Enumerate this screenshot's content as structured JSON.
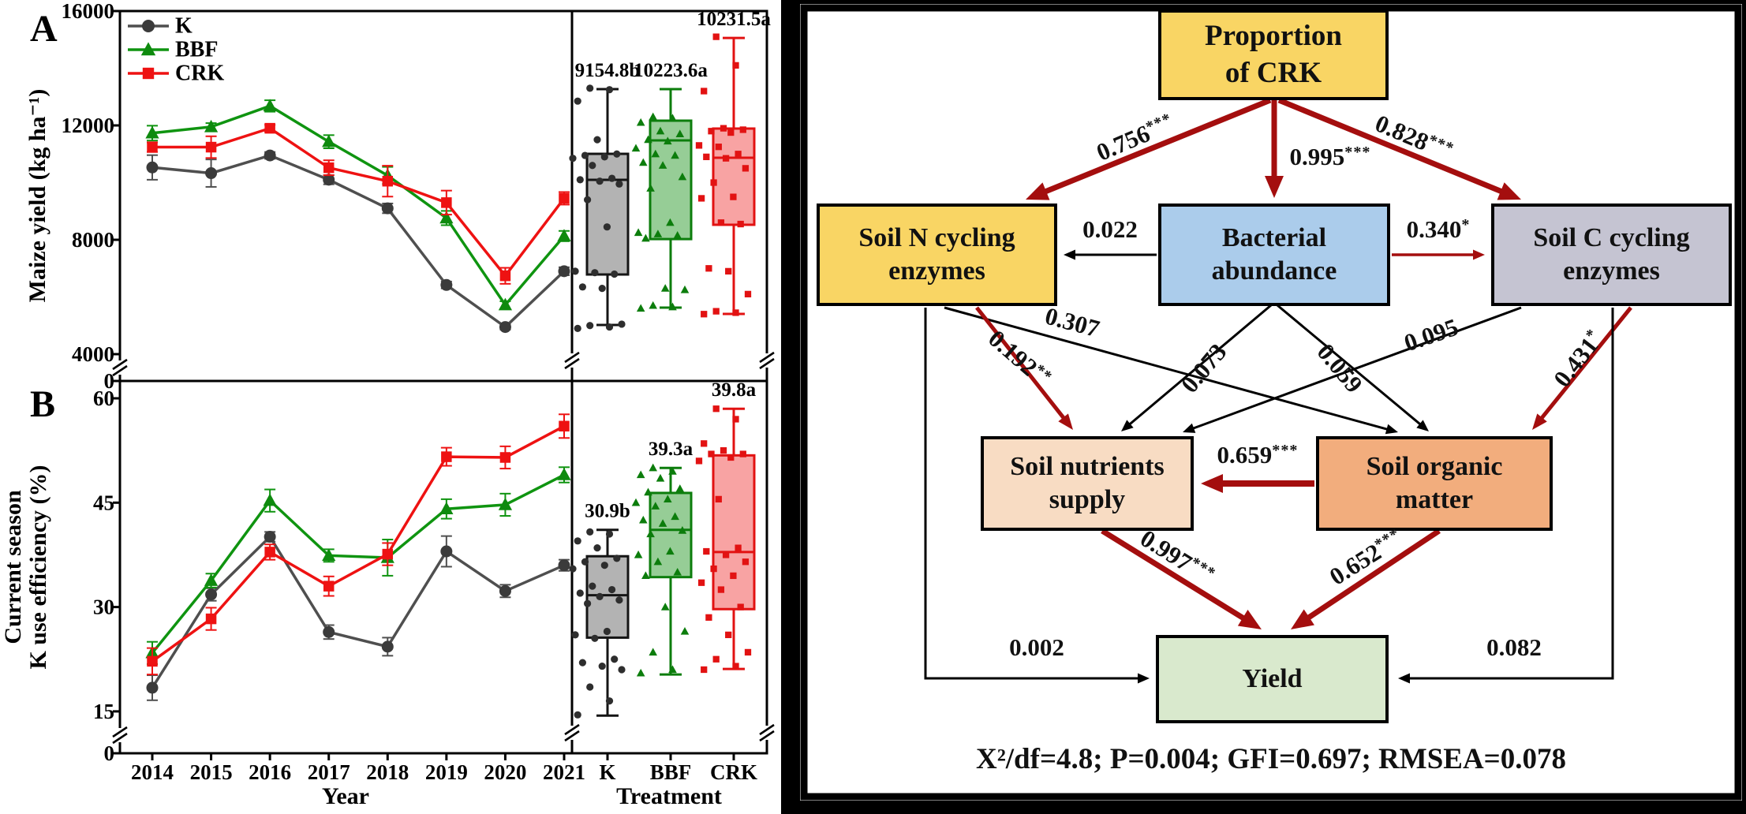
{
  "figure": {
    "panel_a": {
      "letter": "A",
      "ylabel": "Maize yield (kg ha⁻¹)",
      "yticks": [
        16000,
        12000,
        8000,
        4000
      ],
      "zero_label": "0",
      "legend": [
        "K",
        "BBF",
        "CRK"
      ]
    },
    "panel_b": {
      "letter": "B",
      "ylabel_line1": "Current season",
      "ylabel_line2": "K use efficiency (%)",
      "yticks": [
        60,
        45,
        30,
        15
      ],
      "zero_label": "0"
    },
    "xlabel_years": "Year",
    "xlabel_treatment": "Treatment"
  },
  "colors": {
    "series": {
      "K": {
        "line": "#4f4f4f",
        "fill": "#3b3b3b"
      },
      "BBF": {
        "line": "#0f9410",
        "fill": "#0e8a0e"
      },
      "CRK": {
        "line": "#ee1212",
        "fill": "#ee1212"
      }
    },
    "box": {
      "K": {
        "stroke": "#141414",
        "fill": "#b3b3b3",
        "pt": "#2e2e2e"
      },
      "BBF": {
        "stroke": "#0c7d0c",
        "fill": "#96cd96",
        "pt": "#0c7d0c"
      },
      "CRK": {
        "stroke": "#e21212",
        "fill": "#f8a3a3",
        "pt": "#e21212"
      }
    },
    "sem_arrow_red": "#a40e0e",
    "sem_arrow_black": "#000000",
    "node_fills": {
      "crk": "#f9d564",
      "n_enz": "#f9d564",
      "bact": "#abcceb",
      "c_enz": "#c5c4d2",
      "nutr": "#f8dcc3",
      "som": "#f2ad7d",
      "yield": "#d9e9cd"
    }
  },
  "chart_data": [
    {
      "type": "line",
      "panel": "A",
      "ylabel": "Maize yield (kg ha⁻¹)",
      "x": [
        2014,
        2015,
        2016,
        2017,
        2018,
        2019,
        2020,
        2021
      ],
      "ylim": [
        4000,
        16000
      ],
      "axis_break": true,
      "grid": false,
      "legend_position": "upper-left",
      "series": [
        {
          "name": "K",
          "marker": "circle",
          "values": [
            10530,
            10330,
            10950,
            10100,
            9100,
            6420,
            4950,
            6900
          ],
          "err": [
            430,
            480,
            120,
            160,
            170,
            120,
            90,
            140
          ]
        },
        {
          "name": "BBF",
          "marker": "triangle",
          "values": [
            11730,
            11950,
            12680,
            11430,
            10250,
            8760,
            5720,
            8130
          ],
          "err": [
            260,
            130,
            200,
            230,
            300,
            250,
            130,
            180
          ]
        },
        {
          "name": "CRK",
          "marker": "square",
          "values": [
            11240,
            11240,
            11900,
            10520,
            10050,
            9300,
            6740,
            9450
          ],
          "err": [
            170,
            380,
            120,
            260,
            540,
            420,
            280,
            220
          ]
        }
      ]
    },
    {
      "type": "box",
      "panel": "A",
      "categories": [
        "K",
        "BBF",
        "CRK"
      ],
      "mean_labels": [
        "9154.8b",
        "10223.6a",
        "10231.5a"
      ],
      "boxes": [
        {
          "name": "K",
          "whisker_low": 5020,
          "q1": 6786,
          "median": 10096,
          "q3": 11006,
          "whisker_high": 13270,
          "points": [
            13300,
            13250,
            12850,
            11500,
            11000,
            10950,
            10900,
            10850,
            10600,
            10150,
            10100,
            10050,
            9950,
            9400,
            8450,
            6900,
            6850,
            6800,
            6350,
            6300,
            5050,
            5000,
            4950,
            4900
          ]
        },
        {
          "name": "BBF",
          "whisker_low": 5628,
          "q1": 8025,
          "median": 11475,
          "q3": 12166,
          "whisker_high": 13270,
          "points": [
            12300,
            12250,
            12100,
            11800,
            11700,
            11500,
            11450,
            11200,
            11000,
            10950,
            10700,
            10600,
            10200,
            9800,
            8600,
            8250,
            8200,
            8150,
            8050,
            6300,
            6250,
            5700,
            5650,
            5600
          ]
        },
        {
          "name": "CRK",
          "whisker_low": 5407,
          "q1": 8525,
          "median": 10870,
          "q3": 11890,
          "whisker_high": 15060,
          "points": [
            15100,
            14100,
            13200,
            11900,
            11850,
            11800,
            11750,
            11300,
            11250,
            11000,
            10900,
            10850,
            10500,
            10000,
            9500,
            9450,
            8600,
            8550,
            7000,
            6900,
            6100,
            5500,
            5450,
            5400
          ]
        }
      ]
    },
    {
      "type": "line",
      "panel": "B",
      "ylabel": "Current season K use efficiency (%)",
      "x": [
        2014,
        2015,
        2016,
        2017,
        2018,
        2019,
        2020,
        2021
      ],
      "ylim": [
        15,
        60
      ],
      "axis_break": true,
      "grid": false,
      "series": [
        {
          "name": "K",
          "marker": "circle",
          "values": [
            18.4,
            31.8,
            40.1,
            26.4,
            24.3,
            38.0,
            32.3,
            36.0
          ],
          "err": [
            1.8,
            0.9,
            0.7,
            1.0,
            1.3,
            2.2,
            0.9,
            0.8
          ]
        },
        {
          "name": "BBF",
          "marker": "triangle",
          "values": [
            23.4,
            33.8,
            45.3,
            37.4,
            37.1,
            44.1,
            44.7,
            49.0
          ],
          "err": [
            1.6,
            1.0,
            1.6,
            0.9,
            2.6,
            1.4,
            1.6,
            1.1
          ]
        },
        {
          "name": "CRK",
          "marker": "square",
          "values": [
            22.2,
            28.3,
            37.9,
            33.0,
            37.6,
            51.6,
            51.5,
            56.0
          ],
          "err": [
            1.9,
            1.6,
            1.1,
            1.4,
            1.6,
            1.3,
            1.6,
            1.7
          ]
        }
      ]
    },
    {
      "type": "box",
      "panel": "B",
      "categories": [
        "K",
        "BBF",
        "CRK"
      ],
      "mean_labels": [
        "30.9b",
        "39.3a",
        "39.8a"
      ],
      "boxes": [
        {
          "name": "K",
          "whisker_low": 14.4,
          "q1": 25.6,
          "median": 31.7,
          "q3": 37.3,
          "whisker_high": 41.1,
          "points": [
            40.8,
            40.5,
            39.5,
            38.5,
            37.0,
            36.5,
            36.0,
            35.5,
            33.0,
            32.5,
            32.0,
            31.5,
            31.0,
            30.5,
            26.5,
            26.0,
            25.5,
            22.5,
            22.0,
            21.5,
            21.0,
            18.5,
            16.5,
            14.5
          ]
        },
        {
          "name": "BBF",
          "whisker_low": 20.3,
          "q1": 34.3,
          "median": 41.1,
          "q3": 46.4,
          "whisker_high": 50.0,
          "points": [
            50.0,
            49.5,
            49.0,
            48.5,
            47.0,
            46.5,
            45.5,
            45.0,
            44.5,
            43.0,
            42.5,
            42.0,
            41.0,
            40.5,
            38.0,
            37.5,
            36.5,
            35.0,
            34.5,
            30.0,
            26.5,
            23.5,
            21.0,
            20.5
          ]
        },
        {
          "name": "CRK",
          "whisker_low": 21.1,
          "q1": 29.7,
          "median": 37.9,
          "q3": 51.8,
          "whisker_high": 58.5,
          "points": [
            58.5,
            57.0,
            53.5,
            52.5,
            52.0,
            52.0,
            51.5,
            51.0,
            45.5,
            38.5,
            38.0,
            37.5,
            36.5,
            35.5,
            34.5,
            33.5,
            32.5,
            30.0,
            28.5,
            26.0,
            23.5,
            22.5,
            21.5,
            21.0
          ]
        }
      ]
    }
  ],
  "sem": {
    "nodes": {
      "crk": "Proportion\nof CRK",
      "n_enz": "Soil N cycling\nenzymes",
      "bact": "Bacterial\nabundance",
      "c_enz": "Soil C cycling\nenzymes",
      "nutr": "Soil nutrients\nsupply",
      "som": "Soil organic\nmatter",
      "yield": "Yield"
    },
    "paths": [
      {
        "id": "p_n",
        "from": "Proportion of CRK",
        "to": "Soil N cycling enzymes",
        "coef": "0.756",
        "stars": "***",
        "style": "red-thick"
      },
      {
        "id": "p_b",
        "from": "Proportion of CRK",
        "to": "Bacterial abundance",
        "coef": "0.995",
        "stars": "***",
        "style": "red-thick"
      },
      {
        "id": "p_c",
        "from": "Proportion of CRK",
        "to": "Soil C cycling enzymes",
        "coef": "0.828",
        "stars": "***",
        "style": "red-thick"
      },
      {
        "id": "b_n",
        "from": "Bacterial abundance",
        "to": "Soil N cycling enzymes",
        "coef": "0.022",
        "stars": "",
        "style": "black"
      },
      {
        "id": "b_c",
        "from": "Bacterial abundance",
        "to": "Soil C cycling enzymes",
        "coef": "0.340",
        "stars": "*",
        "style": "red-thin"
      },
      {
        "id": "n_o",
        "from": "Soil N cycling enzymes",
        "to": "Soil organic matter",
        "coef": "0.307",
        "stars": "",
        "style": "black"
      },
      {
        "id": "b_s",
        "from": "Bacterial abundance",
        "to": "Soil nutrients supply",
        "coef": "0.073",
        "stars": "",
        "style": "black"
      },
      {
        "id": "b_o",
        "from": "Bacterial abundance",
        "to": "Soil organic matter",
        "coef": "0.059",
        "stars": "",
        "style": "black"
      },
      {
        "id": "c_s",
        "from": "Soil C cycling enzymes",
        "to": "Soil nutrients supply",
        "coef": "0.095",
        "stars": "",
        "style": "black"
      },
      {
        "id": "n_s",
        "from": "Soil N cycling enzymes",
        "to": "Soil nutrients supply",
        "coef": "0.192",
        "stars": "**",
        "style": "red-mid"
      },
      {
        "id": "c_o",
        "from": "Soil C cycling enzymes",
        "to": "Soil organic matter",
        "coef": "0.431",
        "stars": "*",
        "style": "red-mid"
      },
      {
        "id": "o_s",
        "from": "Soil organic matter",
        "to": "Soil nutrients supply",
        "coef": "0.659",
        "stars": "***",
        "style": "red-thick"
      },
      {
        "id": "s_y",
        "from": "Soil nutrients supply",
        "to": "Yield",
        "coef": "0.997",
        "stars": "***",
        "style": "red-thick"
      },
      {
        "id": "o_y",
        "from": "Soil organic matter",
        "to": "Yield",
        "coef": "0.652",
        "stars": "***",
        "style": "red-thick"
      },
      {
        "id": "n_y",
        "from": "Soil N cycling enzymes",
        "to": "Yield",
        "coef": "0.002",
        "stars": "",
        "style": "black-elbow"
      },
      {
        "id": "c_y",
        "from": "Soil C cycling enzymes",
        "to": "Yield",
        "coef": "0.082",
        "stars": "",
        "style": "black-elbow"
      }
    ],
    "fit_stats": "X²/df=4.8; P=0.004; GFI=0.697; RMSEA=0.078"
  }
}
